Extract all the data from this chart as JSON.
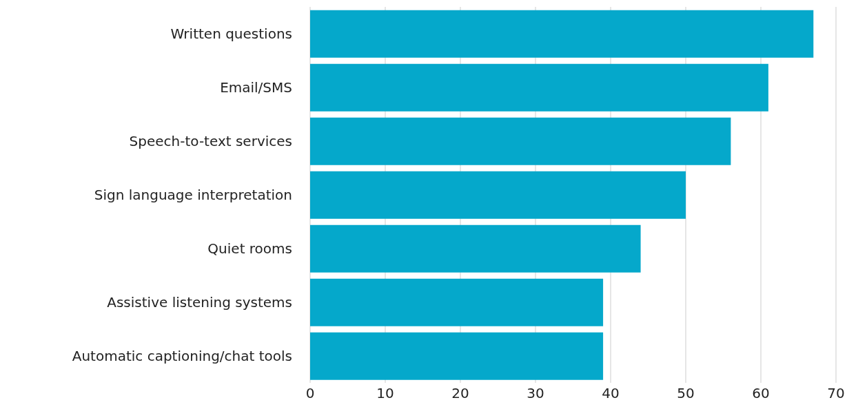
{
  "chart_data": {
    "type": "bar",
    "orientation": "horizontal",
    "categories": [
      "Written questions",
      "Email/SMS",
      "Speech-to-text services",
      "Sign language interpretation",
      "Quiet rooms",
      "Assistive listening systems",
      "Automatic captioning/chat tools"
    ],
    "values": [
      67,
      61,
      56,
      50,
      44,
      39,
      39
    ],
    "color": "#05a8cb",
    "xlim": [
      0,
      70
    ],
    "xticks": [
      0,
      10,
      20,
      30,
      40,
      50,
      60,
      70
    ],
    "grid": "x",
    "legend": false
  }
}
